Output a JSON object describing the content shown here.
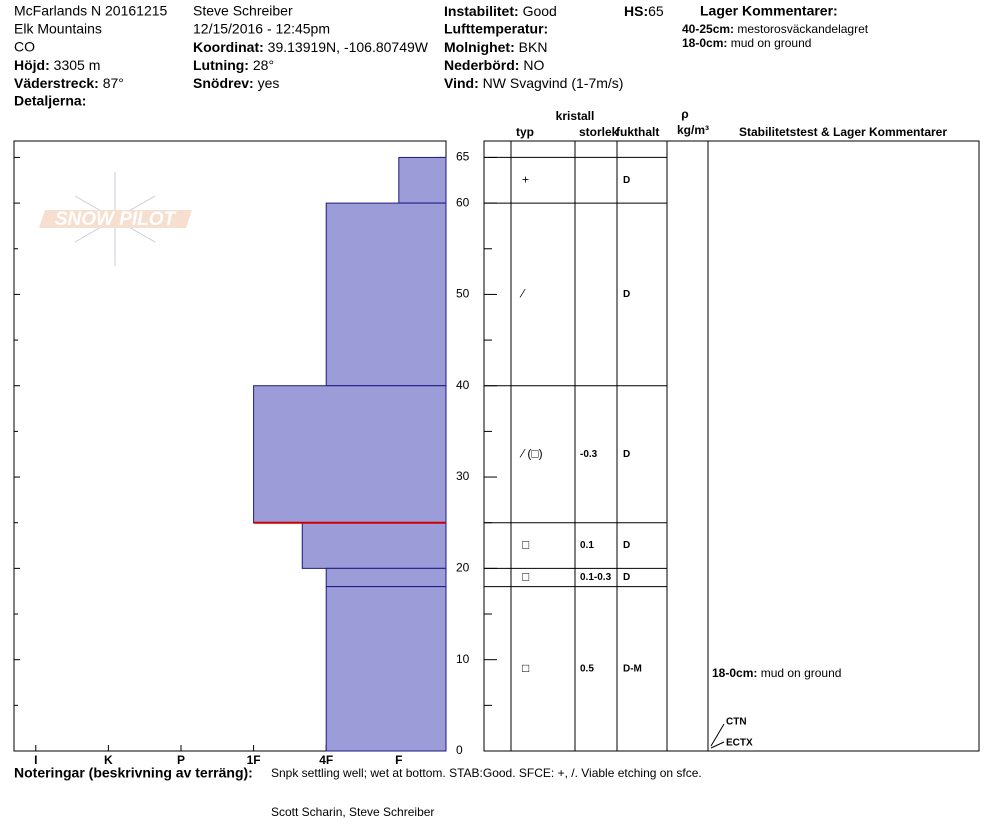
{
  "header": {
    "site": "McFarlands N 20161215",
    "range": "Elk Mountains",
    "state": "CO",
    "elevation": {
      "label": "Höjd:",
      "value": "3305 m"
    },
    "aspect": {
      "label": "Väderstreck:",
      "value": "87°"
    },
    "details": {
      "label": "Detaljerna:"
    },
    "observer": "Steve Schreiber",
    "datetime": "12/15/2016 - 12:45pm",
    "coordinates": {
      "label": "Koordinat:",
      "value": "39.13919N, -106.80749W"
    },
    "slope": {
      "label": "Lutning:",
      "value": "28°"
    },
    "wind_loading": {
      "label": "Snödrev:",
      "value": "yes"
    },
    "stability": {
      "label": "Instabilitet:",
      "value": "Good"
    },
    "air_temp": {
      "label": "Lufttemperatur:"
    },
    "sky": {
      "label": "Molnighet:",
      "value": "BKN"
    },
    "precip": {
      "label": "Nederbörd:",
      "value": "NO"
    },
    "wind": {
      "label": "Vind:",
      "value": "NW Svagvind (1-7m/s)"
    },
    "hs": {
      "label": "HS:",
      "value": "65"
    },
    "layer_comments": {
      "label": "Lager Kommentarer:",
      "items": [
        {
          "label": "40-25cm:",
          "text": "mestorosväckandelagret"
        },
        {
          "label": "18-0cm:",
          "text": "mud on ground"
        }
      ]
    }
  },
  "logo": "SNOW PILOT",
  "chart_data": {
    "type": "hardness-profile",
    "xticks": [
      {
        "value": 6,
        "label": "I"
      },
      {
        "value": 5,
        "label": "K"
      },
      {
        "value": 4,
        "label": "P"
      },
      {
        "value": 3,
        "label": "1F"
      },
      {
        "value": 2,
        "label": "4F"
      },
      {
        "value": 1,
        "label": "F"
      }
    ],
    "xlim": [
      6.3,
      0.35
    ],
    "ylim": [
      0,
      66.8
    ],
    "yticks": [
      0,
      10,
      20,
      30,
      40,
      50,
      60,
      65
    ],
    "minor_yticks": [
      5,
      15,
      25,
      35,
      45,
      55
    ],
    "color": "#9c9cd8",
    "critical_depth": 25,
    "critical_color": "#cc0000",
    "layers": {
      "top": [
        65,
        60,
        40,
        25,
        20,
        18
      ],
      "bottom": [
        60,
        40,
        25,
        20,
        18,
        0
      ],
      "hardness": [
        1,
        2,
        3,
        2.33,
        2,
        2
      ]
    }
  },
  "table": {
    "columns": {
      "type": "typ",
      "crystal": "kristall",
      "size": "storlek",
      "moisture": "fukthalt",
      "rho": "ρ",
      "density_unit": "kg/m³",
      "comments": "Stabilitetstest & Lager Kommentarer"
    },
    "grain": [
      "+",
      "⁄",
      "⁄ (□)",
      "□",
      "□",
      "□"
    ],
    "size": [
      null,
      null,
      "-0.3",
      "0.1",
      "0.1-0.3",
      "0.5"
    ],
    "moisture": [
      "D",
      "D",
      "D",
      "D",
      "D",
      "D-M"
    ],
    "comment": {
      "label": "18-0cm:",
      "text": "mud on ground"
    },
    "tests": [
      "CTN",
      "ECTX"
    ]
  },
  "footer": {
    "notes_label": "Noteringar (beskrivning av terräng):",
    "notes": "Snpk settling well; wet at bottom. STAB:Good. SFCE: +, /. Viable etching on sfce.",
    "observers": "Scott Scharin, Steve Schreiber"
  }
}
